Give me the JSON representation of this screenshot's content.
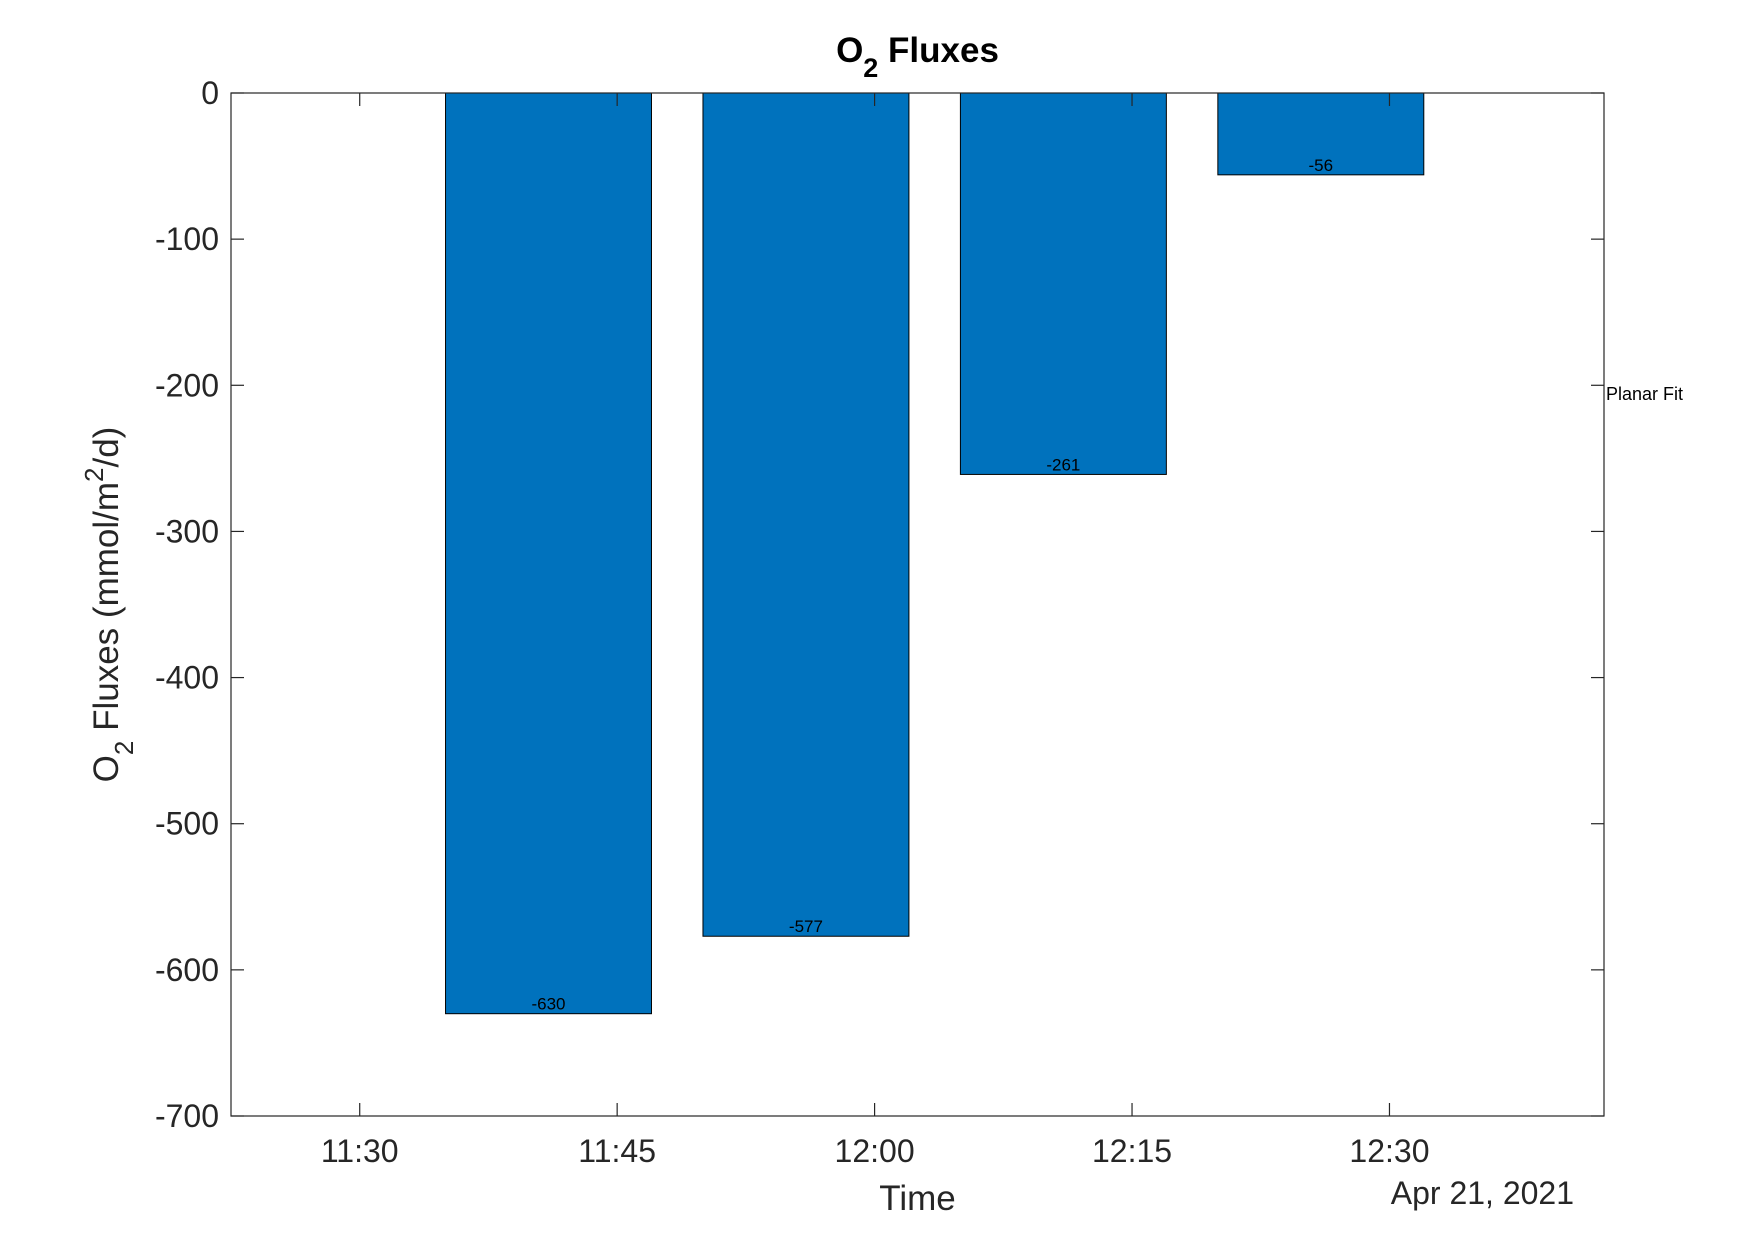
{
  "chart_data": {
    "type": "bar",
    "title": {
      "main": "O",
      "sub": "2",
      "rest": " Fluxes"
    },
    "ylabel": {
      "part1": "O",
      "sub": "2",
      "part2": " Fluxes (mmol/m",
      "sup": "2",
      "part3": "/d)"
    },
    "xlabel": "Time",
    "date_label": "Apr 21, 2021",
    "annotation": "Planar Fit",
    "ylim": [
      -700,
      0
    ],
    "yticks": [
      0,
      -100,
      -200,
      -300,
      -400,
      -500,
      -600,
      -700
    ],
    "x_range_minutes": [
      "11:22.5",
      "12:42.5"
    ],
    "xticks": [
      "11:30",
      "11:45",
      "12:00",
      "12:15",
      "12:30"
    ],
    "bars": [
      {
        "start": "11:35",
        "end": "11:47",
        "value": -630,
        "label": "-630"
      },
      {
        "start": "11:50",
        "end": "12:02",
        "value": -577,
        "label": "-577"
      },
      {
        "start": "12:05",
        "end": "12:17",
        "value": -261,
        "label": "-261"
      },
      {
        "start": "12:20",
        "end": "12:32",
        "value": -56,
        "label": "-56"
      }
    ],
    "bar_color": "#0072BD",
    "grid": false
  }
}
